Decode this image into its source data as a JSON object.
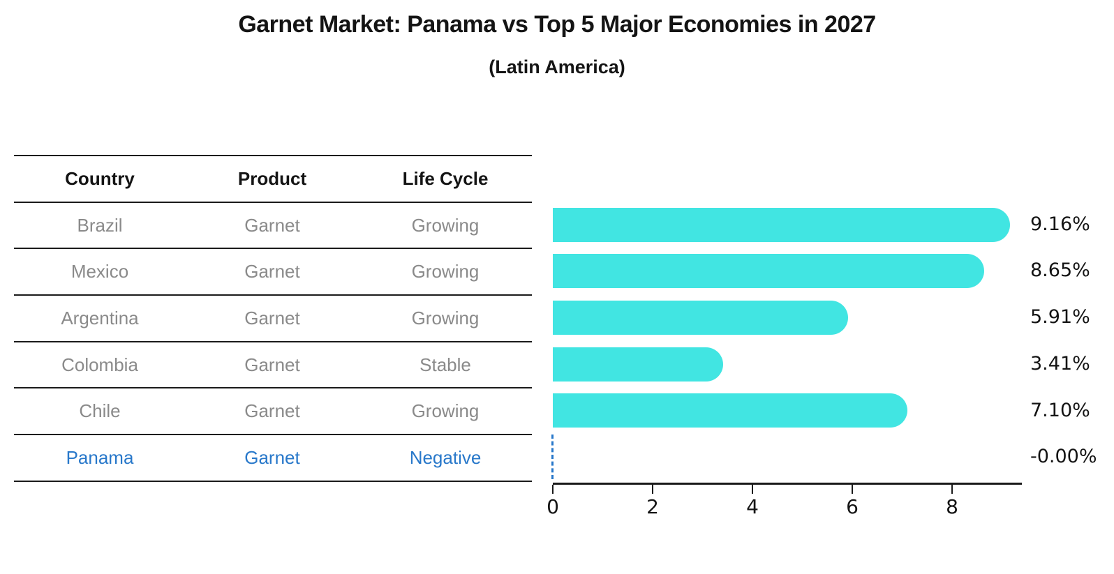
{
  "title": "Garnet Market: Panama vs Top 5 Major Economies in 2027",
  "subtitle": "(Latin America)",
  "table": {
    "headers": [
      "Country",
      "Product",
      "Life Cycle"
    ],
    "rows": [
      {
        "country": "Brazil",
        "product": "Garnet",
        "life_cycle": "Growing",
        "highlighted": false
      },
      {
        "country": "Mexico",
        "product": "Garnet",
        "life_cycle": "Growing",
        "highlighted": false
      },
      {
        "country": "Argentina",
        "product": "Garnet",
        "life_cycle": "Growing",
        "highlighted": false
      },
      {
        "country": "Colombia",
        "product": "Garnet",
        "life_cycle": "Stable",
        "highlighted": false
      },
      {
        "country": "Chile",
        "product": "Garnet",
        "life_cycle": "Growing",
        "highlighted": false
      },
      {
        "country": "Panama",
        "product": "Garnet",
        "life_cycle": "Negative",
        "highlighted": true
      }
    ]
  },
  "chart_data": {
    "type": "bar",
    "orientation": "horizontal",
    "title": "Garnet Market: Panama vs Top 5 Major Economies in 2027",
    "subtitle": "(Latin America)",
    "categories": [
      "Brazil",
      "Mexico",
      "Argentina",
      "Colombia",
      "Chile",
      "Panama"
    ],
    "values": [
      9.16,
      8.65,
      5.91,
      3.41,
      7.1,
      -0.0
    ],
    "value_labels": [
      "9.16%",
      "8.65%",
      "5.91%",
      "3.41%",
      "7.10%",
      "-0.00%"
    ],
    "x_ticks": [
      0,
      2,
      4,
      6,
      8
    ],
    "xlim": [
      0,
      9.4
    ],
    "xlabel": "",
    "ylabel": "",
    "grid": false,
    "legend": false,
    "highlight_index": 5,
    "highlight_marker": "dashed-line-at-zero"
  },
  "colors": {
    "bar": "#41E5E2",
    "highlight": "#2878CA",
    "muted_text": "#8A8A8A",
    "ink": "#141414",
    "background": "#FFFFFF"
  }
}
